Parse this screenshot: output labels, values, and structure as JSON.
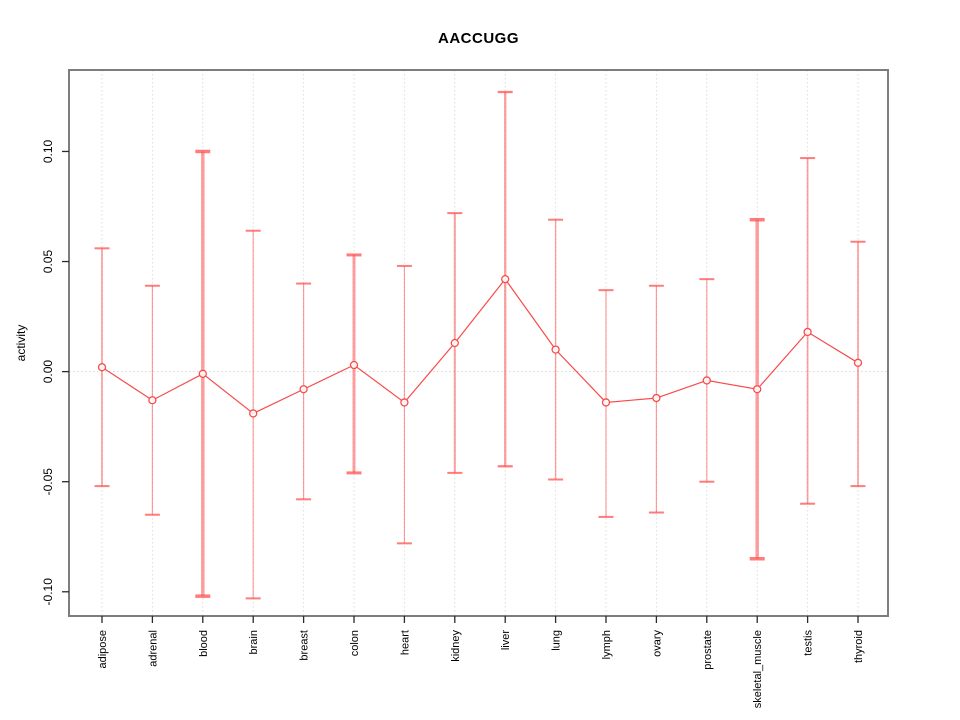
{
  "figure": {
    "title": "AACCUGG",
    "ylabel": "activity"
  },
  "chart_data": {
    "type": "line",
    "title": "AACCUGG",
    "xlabel": "",
    "ylabel": "activity",
    "legend": "none",
    "grid": "vertical dotted gridline at each category; dotted horizontal reference line at y=0",
    "ylim": [
      -0.111,
      0.137
    ],
    "yticks": [
      0.1,
      0.05,
      0.0,
      -0.05,
      -0.1
    ],
    "ytick_labels": [
      "0.10",
      "0.05",
      "0.00",
      "-0.05",
      "-0.10"
    ],
    "categories": [
      "adipose",
      "adrenal",
      "blood",
      "brain",
      "breast",
      "colon",
      "heart",
      "kidney",
      "liver",
      "lung",
      "lymph",
      "ovary",
      "prostate",
      "skeletal_muscle",
      "testis",
      "thyroid"
    ],
    "series": [
      {
        "name": "activity",
        "marker": "open-circle",
        "values": [
          0.002,
          -0.013,
          -0.001,
          -0.019,
          -0.008,
          0.003,
          -0.014,
          0.013,
          0.042,
          0.01,
          -0.014,
          -0.012,
          -0.004,
          -0.008,
          0.018,
          0.004
        ],
        "error_low": [
          -0.052,
          -0.065,
          -0.102,
          -0.103,
          -0.058,
          -0.046,
          -0.078,
          -0.046,
          -0.043,
          -0.049,
          -0.066,
          -0.064,
          -0.05,
          -0.085,
          -0.06,
          -0.052
        ],
        "error_high": [
          0.056,
          0.039,
          0.1,
          0.064,
          0.04,
          0.053,
          0.048,
          0.072,
          0.127,
          0.069,
          0.037,
          0.039,
          0.042,
          0.069,
          0.097,
          0.059
        ],
        "whisker_stroke_px": [
          1.7,
          1.2,
          3.5,
          1.2,
          1.2,
          3.0,
          1.2,
          2.0,
          2.3,
          1.4,
          1.2,
          1.2,
          1.2,
          3.5,
          1.7,
          1.7
        ]
      }
    ],
    "colors": {
      "point_line": "#f84b4b",
      "whisker": "rgba(255,80,80,0.55)",
      "whisker_cap": "rgba(255,80,80,0.75)",
      "gridline": "#dcdcdc",
      "zero_line": "#d4d4d4",
      "plot_border": "#7d7d7d",
      "tick": "#2b2b2b"
    }
  }
}
